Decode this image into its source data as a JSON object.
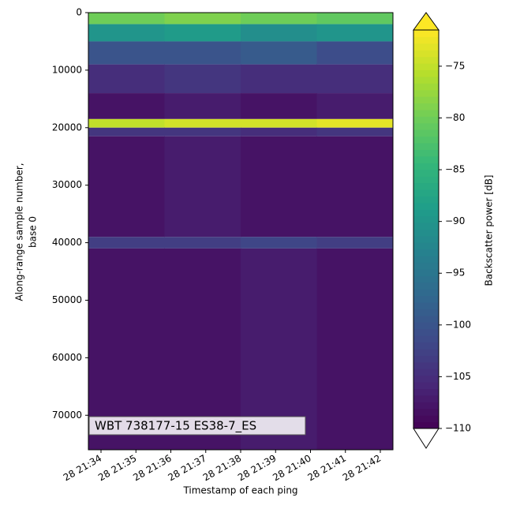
{
  "chart_data": {
    "type": "heatmap",
    "xlabel": "Timestamp of each ping",
    "ylabel": [
      "Along-range sample number,",
      "base 0"
    ],
    "xticks": [
      "28 21:34",
      "28 21:35",
      "28 21:36",
      "28 21:37",
      "28 21:38",
      "28 21:39",
      "28 21:40",
      "28 21:41",
      "28 21:42"
    ],
    "ylim": [
      76000,
      0
    ],
    "yticks": [
      0,
      10000,
      20000,
      30000,
      40000,
      50000,
      60000,
      70000
    ],
    "y_edges": [
      0,
      2000,
      5000,
      9000,
      14000,
      18500,
      20000,
      21500,
      39000,
      41000,
      76000
    ],
    "z": [
      [
        -80,
        -79,
        -80,
        -81
      ],
      [
        -90,
        -89,
        -91,
        -90
      ],
      [
        -100,
        -100,
        -99,
        -101
      ],
      [
        -105,
        -104,
        -105,
        -105
      ],
      [
        -108,
        -107,
        -108,
        -107
      ],
      [
        -75,
        -74,
        -74,
        -73
      ],
      [
        -104,
        -104,
        -105,
        -104
      ],
      [
        -108,
        -107,
        -108,
        -108
      ],
      [
        -103,
        -103,
        -102,
        -103
      ],
      [
        -108,
        -108,
        -107,
        -108
      ]
    ],
    "colormap": "viridis",
    "clim": [
      -110,
      -71.5
    ],
    "colorbar_label": "Backscatter power [dB]",
    "cticks": [
      {
        "value": -110,
        "label": "−110"
      },
      {
        "value": -105,
        "label": "−105"
      },
      {
        "value": -100,
        "label": "−100"
      },
      {
        "value": -95,
        "label": "−95"
      },
      {
        "value": -90,
        "label": "−90"
      },
      {
        "value": -85,
        "label": "−85"
      },
      {
        "value": -80,
        "label": "−80"
      },
      {
        "value": -75,
        "label": "−75"
      }
    ],
    "annotation": "WBT 738177-15 ES38-7_ES"
  }
}
